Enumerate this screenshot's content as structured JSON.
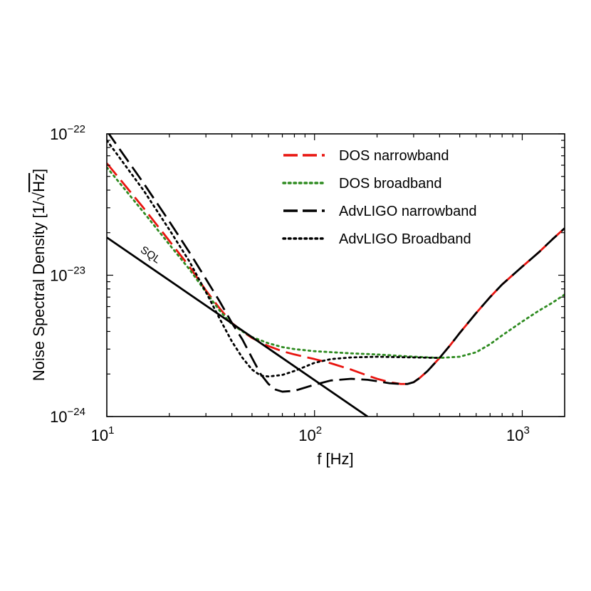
{
  "chart_data": {
    "type": "line",
    "xlabel": "f [Hz]",
    "ylabel_prefix": "Noise Spectral Density [1/",
    "ylabel_sqrt": "Hz",
    "ylabel_suffix": "]",
    "x_scale": "log",
    "y_scale": "log",
    "xlim": [
      10,
      1600
    ],
    "ylim": [
      1e-24,
      1e-22
    ],
    "grid": false,
    "legend_position": "top-right",
    "x_ticks": [
      {
        "value": 10,
        "base": "10",
        "exp": "1"
      },
      {
        "value": 100,
        "base": "10",
        "exp": "2"
      },
      {
        "value": 1000,
        "base": "10",
        "exp": "3"
      }
    ],
    "y_ticks": [
      {
        "value": 1e-24,
        "base": "10",
        "exp": "−24"
      },
      {
        "value": 1e-23,
        "base": "10",
        "exp": "−23"
      },
      {
        "value": 1e-22,
        "base": "10",
        "exp": "−22"
      }
    ],
    "series": [
      {
        "name": "DOS narrowband",
        "color": "#e8140f",
        "dash": "long-dash",
        "x": [
          10,
          15,
          20,
          25,
          30,
          35,
          40,
          45,
          50,
          60,
          70,
          80,
          100,
          120,
          150,
          180,
          200,
          230,
          260,
          280,
          300,
          320,
          350,
          400,
          450,
          500,
          600,
          700,
          800,
          1000,
          1200,
          1400,
          1600
        ],
        "y": [
          6.2e-23,
          3e-23,
          1.75e-23,
          1.15e-23,
          7.8e-24,
          5.8e-24,
          4.6e-24,
          4e-24,
          3.6e-24,
          3.15e-24,
          2.9e-24,
          2.75e-24,
          2.55e-24,
          2.38e-24,
          2.15e-24,
          1.95e-24,
          1.85e-24,
          1.75e-24,
          1.7e-24,
          1.7e-24,
          1.75e-24,
          1.87e-24,
          2.1e-24,
          2.6e-24,
          3.2e-24,
          3.9e-24,
          5.4e-24,
          7e-24,
          8.6e-24,
          1.15e-23,
          1.45e-23,
          1.8e-23,
          2.15e-23
        ]
      },
      {
        "name": "DOS broadband",
        "color": "#2e8b20",
        "dash": "dotted",
        "x": [
          10,
          15,
          20,
          25,
          30,
          35,
          40,
          45,
          50,
          60,
          70,
          80,
          100,
          150,
          200,
          300,
          400,
          500,
          600,
          700,
          800,
          1000,
          1200,
          1400,
          1600
        ],
        "y": [
          5.8e-23,
          2.8e-23,
          1.65e-23,
          1.1e-23,
          7.6e-24,
          5.6e-24,
          4.5e-24,
          4e-24,
          3.65e-24,
          3.3e-24,
          3.1e-24,
          3e-24,
          2.9e-24,
          2.8e-24,
          2.75e-24,
          2.65e-24,
          2.6e-24,
          2.65e-24,
          2.85e-24,
          3.25e-24,
          3.75e-24,
          4.7e-24,
          5.6e-24,
          6.4e-24,
          7.3e-24
        ]
      },
      {
        "name": "AdvLIGO narrowband",
        "color": "#000000",
        "dash": "long-dash",
        "x": [
          10,
          15,
          20,
          25,
          30,
          35,
          40,
          45,
          50,
          55,
          60,
          65,
          70,
          80,
          100,
          120,
          150,
          180,
          200,
          230,
          260,
          280,
          300,
          320,
          350,
          400,
          450,
          500,
          600,
          700,
          800,
          1000,
          1200,
          1400,
          1600
        ],
        "y": [
          1.05e-22,
          4.5e-23,
          2.4e-23,
          1.45e-23,
          9.4e-24,
          6.5e-24,
          4.6e-24,
          3.5e-24,
          2.6e-24,
          2e-24,
          1.7e-24,
          1.55e-24,
          1.5e-24,
          1.52e-24,
          1.68e-24,
          1.8e-24,
          1.85e-24,
          1.82e-24,
          1.78e-24,
          1.72e-24,
          1.7e-24,
          1.7e-24,
          1.75e-24,
          1.87e-24,
          2.1e-24,
          2.6e-24,
          3.2e-24,
          3.9e-24,
          5.4e-24,
          7e-24,
          8.6e-24,
          1.15e-23,
          1.45e-23,
          1.8e-23,
          2.15e-23
        ]
      },
      {
        "name": "AdvLIGO Broadband",
        "color": "#000000",
        "dash": "dotted",
        "x": [
          10,
          15,
          20,
          25,
          30,
          35,
          40,
          45,
          50,
          55,
          60,
          70,
          80,
          100,
          120,
          150,
          200,
          300,
          400
        ],
        "y": [
          9e-23,
          4e-23,
          2.1e-23,
          1.25e-23,
          7.6e-24,
          4.9e-24,
          3.4e-24,
          2.6e-24,
          2.15e-24,
          1.95e-24,
          1.92e-24,
          1.97e-24,
          2.1e-24,
          2.4e-24,
          2.55e-24,
          2.62e-24,
          2.65e-24,
          2.62e-24,
          2.6e-24
        ]
      },
      {
        "name": "SQL",
        "label": "SQL",
        "color": "#000000",
        "dash": "solid",
        "x": [
          10,
          180
        ],
        "y": [
          1.85e-23,
          1e-24
        ]
      }
    ]
  }
}
